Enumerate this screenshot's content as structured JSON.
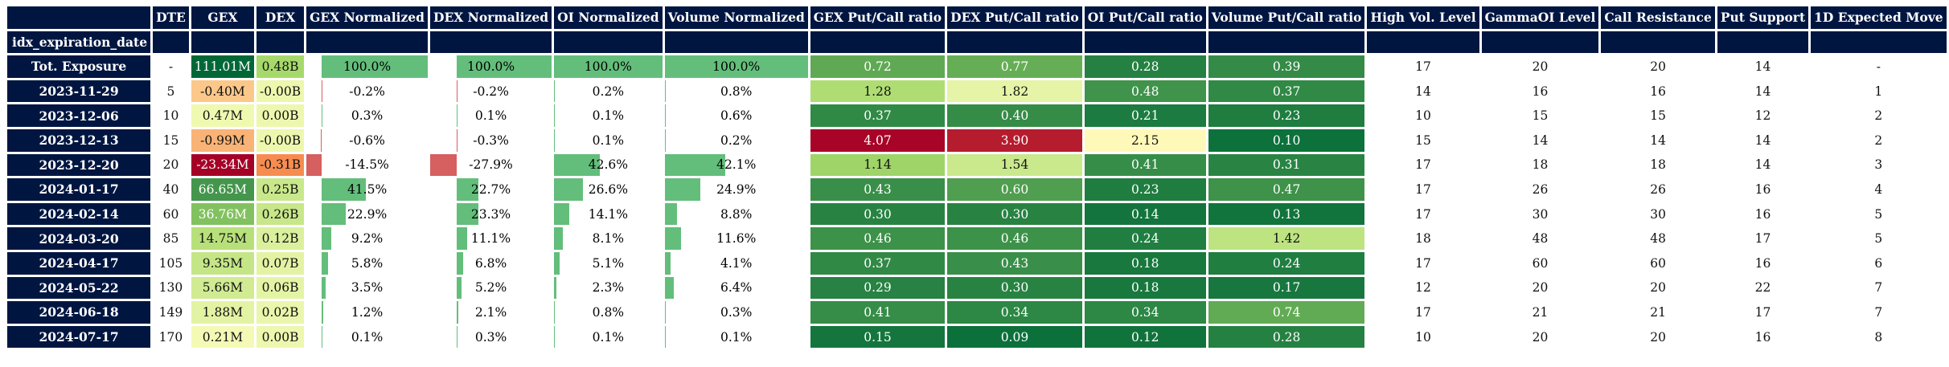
{
  "headers": [
    "DTE",
    "GEX",
    "DEX",
    "GEX Normalized",
    "DEX Normalized",
    "OI Normalized",
    "Volume Normalized",
    "GEX Put/Call ratio",
    "DEX Put/Call ratio",
    "OI Put/Call ratio",
    "Volume Put/Call ratio",
    "High Vol. Level",
    "GammaOI Level",
    "Call Resistance",
    "Put Support",
    "1D Expected Move"
  ],
  "index_name": "idx_expiration_date",
  "rows": [
    {
      "date": "Tot. Exposure",
      "dte": "-",
      "gex": "111.01M",
      "dex": "0.48B",
      "gex_norm": "100.0%",
      "dex_norm": "100.0%",
      "oi_norm": "100.0%",
      "vol_norm": "100.0%",
      "gex_pc": "0.72",
      "dex_pc": "0.77",
      "oi_pc": "0.28",
      "vol_pc": "0.39",
      "hv": "17",
      "goi": "20",
      "cr": "20",
      "ps": "14",
      "em": "-"
    },
    {
      "date": "2023-11-29",
      "dte": "5",
      "gex": "-0.40M",
      "dex": "-0.00B",
      "gex_norm": "-0.2%",
      "dex_norm": "-0.2%",
      "oi_norm": "0.2%",
      "vol_norm": "0.8%",
      "gex_pc": "1.28",
      "dex_pc": "1.82",
      "oi_pc": "0.48",
      "vol_pc": "0.37",
      "hv": "14",
      "goi": "16",
      "cr": "16",
      "ps": "14",
      "em": "1"
    },
    {
      "date": "2023-12-06",
      "dte": "10",
      "gex": "0.47M",
      "dex": "0.00B",
      "gex_norm": "0.3%",
      "dex_norm": "0.1%",
      "oi_norm": "0.1%",
      "vol_norm": "0.6%",
      "gex_pc": "0.37",
      "dex_pc": "0.40",
      "oi_pc": "0.21",
      "vol_pc": "0.23",
      "hv": "10",
      "goi": "15",
      "cr": "15",
      "ps": "12",
      "em": "2"
    },
    {
      "date": "2023-12-13",
      "dte": "15",
      "gex": "-0.99M",
      "dex": "-0.00B",
      "gex_norm": "-0.6%",
      "dex_norm": "-0.3%",
      "oi_norm": "0.1%",
      "vol_norm": "0.2%",
      "gex_pc": "4.07",
      "dex_pc": "3.90",
      "oi_pc": "2.15",
      "vol_pc": "0.10",
      "hv": "15",
      "goi": "14",
      "cr": "14",
      "ps": "14",
      "em": "2"
    },
    {
      "date": "2023-12-20",
      "dte": "20",
      "gex": "-23.34M",
      "dex": "-0.31B",
      "gex_norm": "-14.5%",
      "dex_norm": "-27.9%",
      "oi_norm": "42.6%",
      "vol_norm": "42.1%",
      "gex_pc": "1.14",
      "dex_pc": "1.54",
      "oi_pc": "0.41",
      "vol_pc": "0.31",
      "hv": "17",
      "goi": "18",
      "cr": "18",
      "ps": "14",
      "em": "3"
    },
    {
      "date": "2024-01-17",
      "dte": "40",
      "gex": "66.65M",
      "dex": "0.25B",
      "gex_norm": "41.5%",
      "dex_norm": "22.7%",
      "oi_norm": "26.6%",
      "vol_norm": "24.9%",
      "gex_pc": "0.43",
      "dex_pc": "0.60",
      "oi_pc": "0.23",
      "vol_pc": "0.47",
      "hv": "17",
      "goi": "26",
      "cr": "26",
      "ps": "16",
      "em": "4"
    },
    {
      "date": "2024-02-14",
      "dte": "60",
      "gex": "36.76M",
      "dex": "0.26B",
      "gex_norm": "22.9%",
      "dex_norm": "23.3%",
      "oi_norm": "14.1%",
      "vol_norm": "8.8%",
      "gex_pc": "0.30",
      "dex_pc": "0.30",
      "oi_pc": "0.14",
      "vol_pc": "0.13",
      "hv": "17",
      "goi": "30",
      "cr": "30",
      "ps": "16",
      "em": "5"
    },
    {
      "date": "2024-03-20",
      "dte": "85",
      "gex": "14.75M",
      "dex": "0.12B",
      "gex_norm": "9.2%",
      "dex_norm": "11.1%",
      "oi_norm": "8.1%",
      "vol_norm": "11.6%",
      "gex_pc": "0.46",
      "dex_pc": "0.46",
      "oi_pc": "0.24",
      "vol_pc": "1.42",
      "hv": "18",
      "goi": "48",
      "cr": "48",
      "ps": "17",
      "em": "5"
    },
    {
      "date": "2024-04-17",
      "dte": "105",
      "gex": "9.35M",
      "dex": "0.07B",
      "gex_norm": "5.8%",
      "dex_norm": "6.8%",
      "oi_norm": "5.1%",
      "vol_norm": "4.1%",
      "gex_pc": "0.37",
      "dex_pc": "0.43",
      "oi_pc": "0.18",
      "vol_pc": "0.24",
      "hv": "17",
      "goi": "60",
      "cr": "60",
      "ps": "16",
      "em": "6"
    },
    {
      "date": "2024-05-22",
      "dte": "130",
      "gex": "5.66M",
      "dex": "0.06B",
      "gex_norm": "3.5%",
      "dex_norm": "5.2%",
      "oi_norm": "2.3%",
      "vol_norm": "6.4%",
      "gex_pc": "0.29",
      "dex_pc": "0.30",
      "oi_pc": "0.18",
      "vol_pc": "0.17",
      "hv": "12",
      "goi": "20",
      "cr": "20",
      "ps": "22",
      "em": "7"
    },
    {
      "date": "2024-06-18",
      "dte": "149",
      "gex": "1.88M",
      "dex": "0.02B",
      "gex_norm": "1.2%",
      "dex_norm": "2.1%",
      "oi_norm": "0.8%",
      "vol_norm": "0.3%",
      "gex_pc": "0.41",
      "dex_pc": "0.34",
      "oi_pc": "0.34",
      "vol_pc": "0.74",
      "hv": "17",
      "goi": "21",
      "cr": "21",
      "ps": "17",
      "em": "7"
    },
    {
      "date": "2024-07-17",
      "dte": "170",
      "gex": "0.21M",
      "dex": "0.00B",
      "gex_norm": "0.1%",
      "dex_norm": "0.3%",
      "oi_norm": "0.1%",
      "vol_norm": "0.1%",
      "gex_pc": "0.15",
      "dex_pc": "0.09",
      "oi_pc": "0.12",
      "vol_pc": "0.28",
      "hv": "10",
      "goi": "20",
      "cr": "20",
      "ps": "16",
      "em": "8"
    }
  ],
  "colors": {
    "header_bg": "#001641",
    "bar_positive": "#63be7b",
    "bar_negative": "#d65f5f"
  }
}
